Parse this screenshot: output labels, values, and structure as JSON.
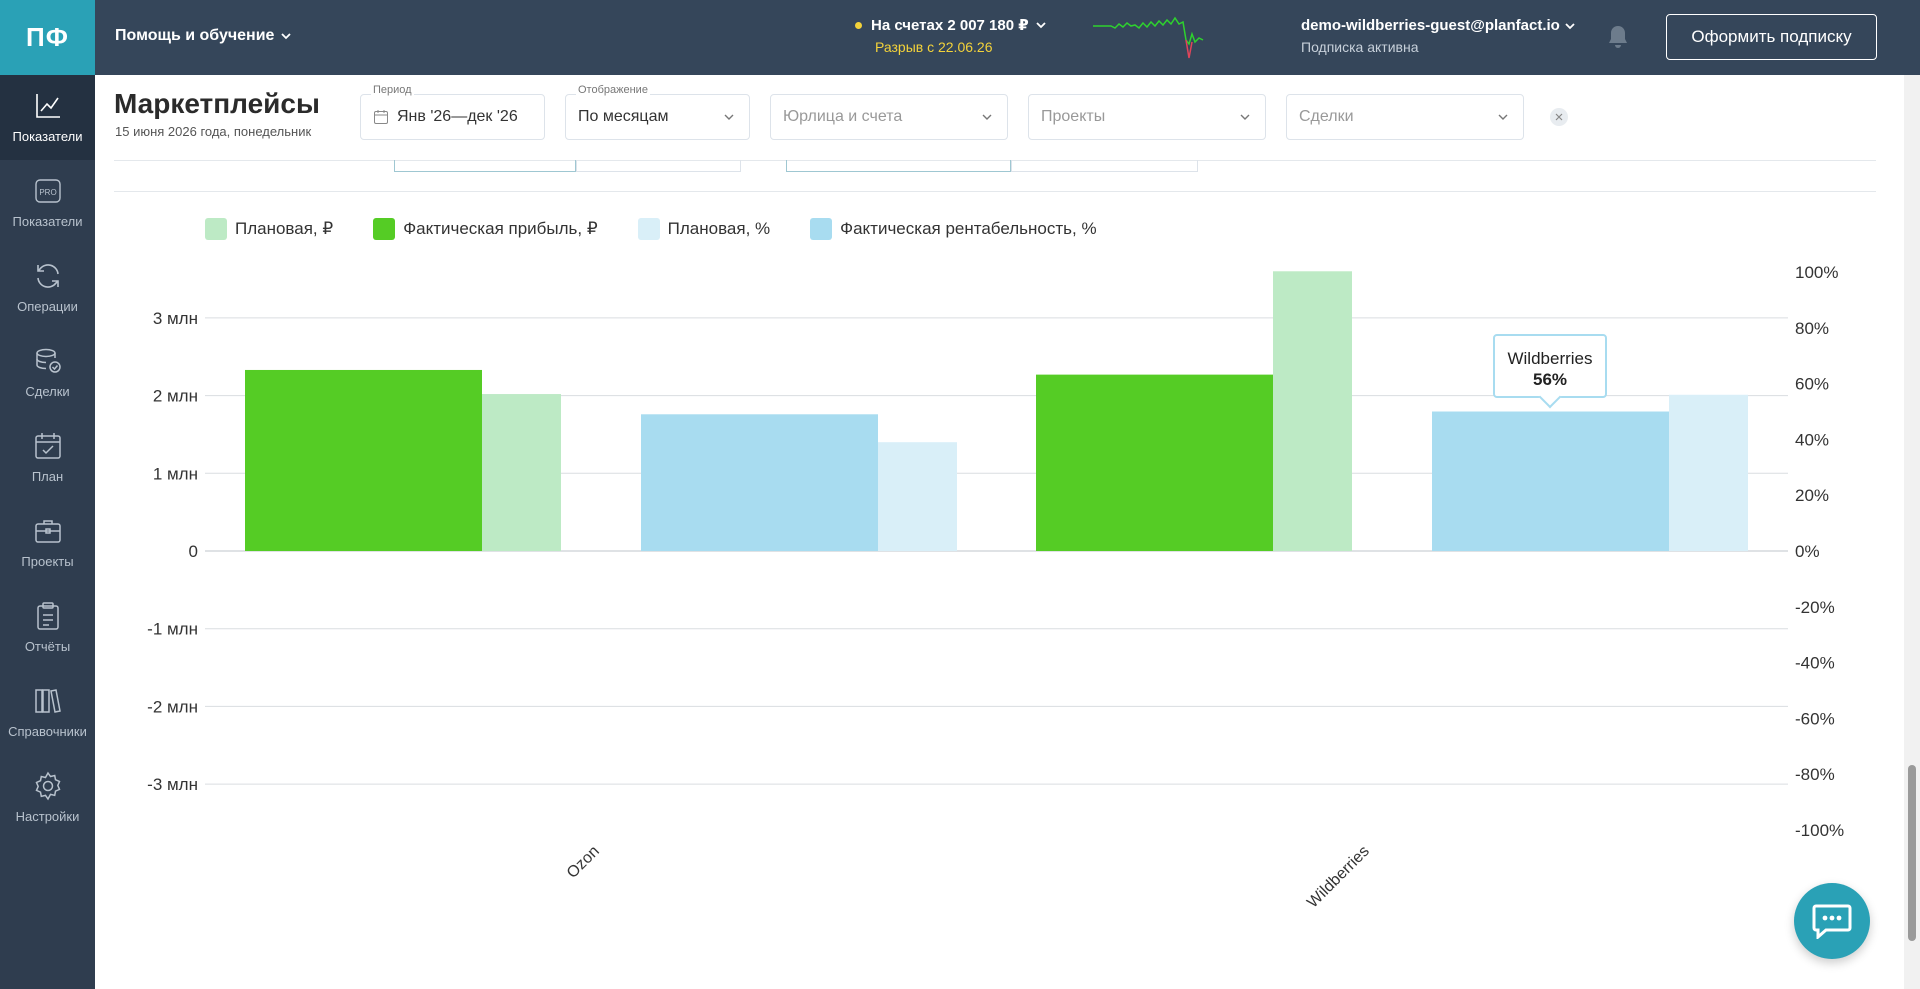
{
  "app": {
    "logo": "ПФ"
  },
  "sidebar": {
    "items": [
      {
        "label": "Показатели",
        "icon": "line-chart-icon",
        "active": true
      },
      {
        "label": "Показатели",
        "icon": "pro-badge-icon",
        "active": false
      },
      {
        "label": "Операции",
        "icon": "refresh-icon",
        "active": false
      },
      {
        "label": "Сделки",
        "icon": "database-check-icon",
        "active": false
      },
      {
        "label": "План",
        "icon": "calendar-check-icon",
        "active": false
      },
      {
        "label": "Проекты",
        "icon": "briefcase-icon",
        "active": false
      },
      {
        "label": "Отчёты",
        "icon": "clipboard-icon",
        "active": false
      },
      {
        "label": "Справочники",
        "icon": "books-icon",
        "active": false
      },
      {
        "label": "Настройки",
        "icon": "gear-icon",
        "active": false
      }
    ]
  },
  "topbar": {
    "help": "Помощь и обучение",
    "balance": "На счетах 2 007 180 ₽",
    "balance_sub": "Разрыв с 22.06.26",
    "account_email": "demo-wildberries-guest@planfact.io",
    "account_status": "Подписка активна",
    "subscribe": "Оформить подписку"
  },
  "header": {
    "title": "Маркетплейсы",
    "date": "15 июня 2026 года, понедельник"
  },
  "filters": {
    "period_label": "Период",
    "period_value": "Янв '26—дек '26",
    "display_label": "Отображение",
    "display_value": "По месяцам",
    "legal_placeholder": "Юрлица и счета",
    "projects_placeholder": "Проекты",
    "deals_placeholder": "Сделки"
  },
  "legend": [
    {
      "label": "Плановая, ₽",
      "color": "#bdeac5"
    },
    {
      "label": "Фактическая прибыль, ₽",
      "color": "#55cc25"
    },
    {
      "label": "Плановая, %",
      "color": "#d9eff8"
    },
    {
      "label": "Фактическая рентабельность, %",
      "color": "#a8dcf0"
    }
  ],
  "tooltip": {
    "title": "Wildberries",
    "value": "56%"
  },
  "chart_data": {
    "type": "bar",
    "categories": [
      "Ozon",
      "Wildberries"
    ],
    "left_axis": {
      "ticks": [
        "3 млн",
        "2 млн",
        "1 млн",
        "0",
        "-1 млн",
        "-2 млн",
        "-3 млн"
      ],
      "ylim": [
        -3.6,
        3.6
      ],
      "unit": "млн ₽"
    },
    "right_axis": {
      "ticks": [
        "100%",
        "80%",
        "60%",
        "40%",
        "20%",
        "0%",
        "-20%",
        "-40%",
        "-60%",
        "-80%",
        "-100%"
      ],
      "ylim": [
        -100,
        100
      ]
    },
    "series": [
      {
        "name": "Фактическая прибыль, ₽",
        "axis": "left",
        "color": "#55cc25",
        "values": [
          2.33,
          2.27
        ]
      },
      {
        "name": "Плановая, ₽",
        "axis": "left",
        "color": "#bdeac5",
        "values": [
          2.02,
          3.6
        ]
      },
      {
        "name": "Фактическая рентабельность, %",
        "axis": "right",
        "color": "#a8dcf0",
        "values": [
          49,
          50
        ]
      },
      {
        "name": "Плановая, %",
        "axis": "right",
        "color": "#d9eff8",
        "values": [
          39,
          56
        ]
      }
    ],
    "grid": true,
    "legend_position": "top-left"
  }
}
